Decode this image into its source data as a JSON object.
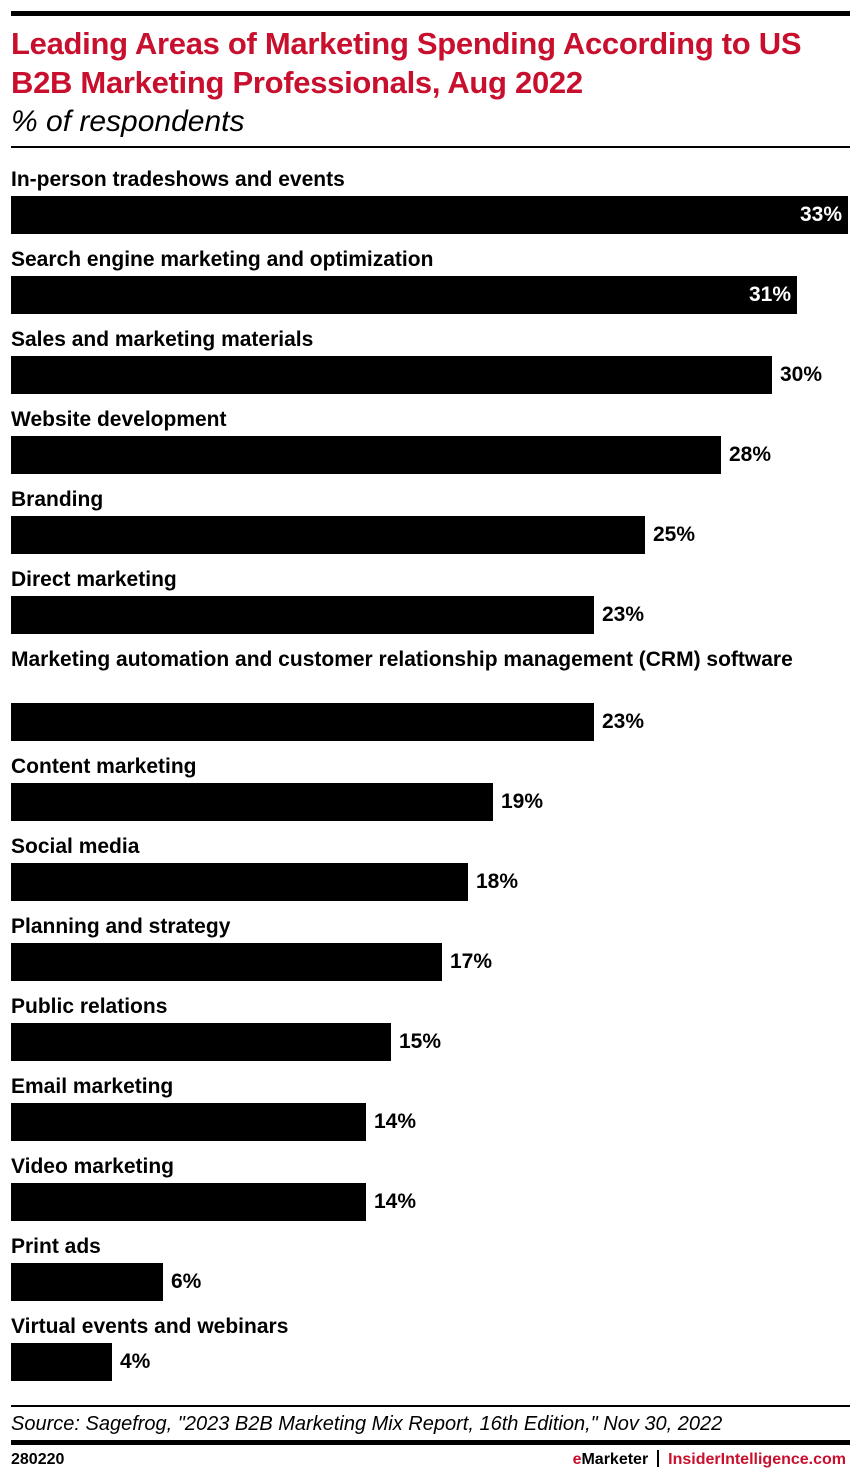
{
  "header": {
    "title": "Leading Areas of Marketing Spending According to US B2B Marketing Professionals, Aug 2022",
    "subtitle": "% of respondents"
  },
  "footer": {
    "source": "Source: Sagefrog, \"2023 B2B Marketing Mix Report, 16th Edition,\" Nov 30, 2022",
    "chart_id": "280220",
    "brand_e": "e",
    "brand_rest": "Marketer",
    "brand_site": "InsiderIntelligence.com"
  },
  "colors": {
    "title": "#c8102e",
    "bar": "#000000",
    "brand_accent": "#c8102e"
  },
  "rows": [
    {
      "label": "In-person tradeshows and events",
      "value_label": "33%"
    },
    {
      "label": "Search engine marketing and optimization",
      "value_label": "31%"
    },
    {
      "label": "Sales and marketing materials",
      "value_label": "30%"
    },
    {
      "label": "Website development",
      "value_label": "28%"
    },
    {
      "label": "Branding",
      "value_label": "25%"
    },
    {
      "label": "Direct marketing",
      "value_label": "23%"
    },
    {
      "label": "Marketing automation and customer relationship management (CRM) software",
      "value_label": "23%"
    },
    {
      "label": "Content marketing",
      "value_label": "19%"
    },
    {
      "label": "Social media",
      "value_label": "18%"
    },
    {
      "label": "Planning and strategy",
      "value_label": "17%"
    },
    {
      "label": "Public relations",
      "value_label": "15%"
    },
    {
      "label": "Email marketing",
      "value_label": "14%"
    },
    {
      "label": "Video marketing",
      "value_label": "14%"
    },
    {
      "label": "Print ads",
      "value_label": "6%"
    },
    {
      "label": "Virtual events and webinars",
      "value_label": "4%"
    }
  ],
  "chart_data": {
    "type": "bar",
    "orientation": "horizontal",
    "title": "Leading Areas of Marketing Spending According to US B2B Marketing Professionals, Aug 2022",
    "subtitle": "% of respondents",
    "xlabel": "",
    "ylabel": "",
    "unit": "%",
    "categories": [
      "In-person tradeshows and events",
      "Search engine marketing and optimization",
      "Sales and marketing materials",
      "Website development",
      "Branding",
      "Direct marketing",
      "Marketing automation and customer relationship management (CRM) software",
      "Content marketing",
      "Social media",
      "Planning and strategy",
      "Public relations",
      "Email marketing",
      "Video marketing",
      "Print ads",
      "Virtual events and webinars"
    ],
    "values": [
      33,
      31,
      30,
      28,
      25,
      23,
      23,
      19,
      18,
      17,
      15,
      14,
      14,
      6,
      4
    ],
    "xlim": [
      0,
      33
    ],
    "grid": false,
    "legend": null,
    "data_labels": true,
    "source": "Source: Sagefrog, \"2023 B2B Marketing Mix Report, 16th Edition,\" Nov 30, 2022"
  }
}
